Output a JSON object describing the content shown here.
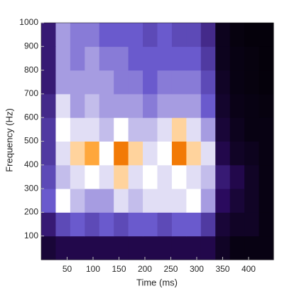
{
  "chart_data": {
    "type": "heatmap",
    "xlabel": "Time (ms)",
    "ylabel": "Frequency (Hz)",
    "xlim": [
      0,
      448
    ],
    "ylim": [
      0,
      1000
    ],
    "xticks": [
      50,
      100,
      150,
      200,
      250,
      300,
      350,
      400
    ],
    "yticks": [
      100,
      200,
      300,
      400,
      500,
      600,
      700,
      800,
      900,
      1000
    ],
    "colorscale": [
      [
        0,
        "#000000"
      ],
      [
        0.25,
        "#2a0a5e"
      ],
      [
        0.5,
        "#6a5acd"
      ],
      [
        0.75,
        "#ffffff"
      ],
      [
        0.88,
        "#ff8c00"
      ],
      [
        1,
        "#b22222"
      ]
    ],
    "x": [
      14,
      42,
      70,
      98,
      126,
      154,
      182,
      210,
      238,
      266,
      294,
      322,
      350,
      378,
      406,
      434
    ],
    "y": [
      50,
      150,
      250,
      350,
      450,
      550,
      650,
      750,
      850,
      950
    ],
    "z": [
      [
        0.15,
        0.2,
        0.2,
        0.2,
        0.2,
        0.2,
        0.2,
        0.2,
        0.2,
        0.2,
        0.2,
        0.2,
        0.1,
        0.05,
        0.05,
        0.05
      ],
      [
        0.3,
        0.45,
        0.5,
        0.45,
        0.5,
        0.45,
        0.5,
        0.5,
        0.45,
        0.5,
        0.5,
        0.4,
        0.15,
        0.1,
        0.1,
        0.05
      ],
      [
        0.5,
        0.75,
        0.65,
        0.6,
        0.6,
        0.7,
        0.65,
        0.7,
        0.7,
        0.7,
        0.75,
        0.6,
        0.25,
        0.15,
        0.1,
        0.05
      ],
      [
        0.45,
        0.65,
        0.7,
        0.75,
        0.7,
        0.8,
        0.7,
        0.75,
        0.7,
        0.75,
        0.7,
        0.65,
        0.3,
        0.2,
        0.1,
        0.05
      ],
      [
        0.4,
        0.7,
        0.8,
        0.85,
        0.75,
        0.9,
        0.8,
        0.7,
        0.75,
        0.9,
        0.8,
        0.7,
        0.2,
        0.1,
        0.08,
        0.05
      ],
      [
        0.4,
        0.75,
        0.7,
        0.7,
        0.65,
        0.75,
        0.65,
        0.65,
        0.7,
        0.8,
        0.7,
        0.6,
        0.15,
        0.08,
        0.05,
        0.05
      ],
      [
        0.35,
        0.7,
        0.6,
        0.65,
        0.6,
        0.6,
        0.6,
        0.55,
        0.6,
        0.6,
        0.6,
        0.5,
        0.12,
        0.06,
        0.05,
        0.04
      ],
      [
        0.3,
        0.6,
        0.6,
        0.6,
        0.6,
        0.55,
        0.55,
        0.5,
        0.55,
        0.55,
        0.55,
        0.45,
        0.1,
        0.05,
        0.04,
        0.03
      ],
      [
        0.3,
        0.6,
        0.55,
        0.6,
        0.55,
        0.55,
        0.5,
        0.5,
        0.5,
        0.5,
        0.5,
        0.4,
        0.08,
        0.05,
        0.04,
        0.03
      ],
      [
        0.3,
        0.6,
        0.55,
        0.55,
        0.5,
        0.5,
        0.5,
        0.45,
        0.5,
        0.45,
        0.45,
        0.35,
        0.08,
        0.04,
        0.03,
        0.03
      ]
    ]
  }
}
